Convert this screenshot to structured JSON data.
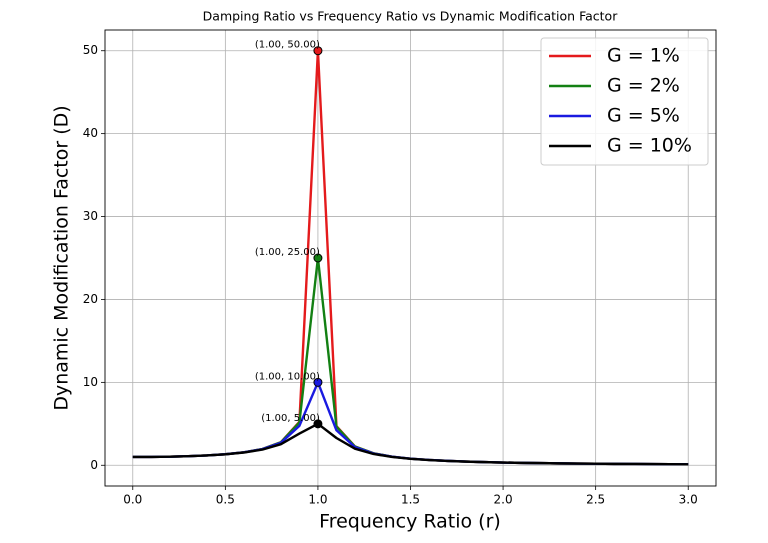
{
  "chart_data": {
    "type": "line",
    "title": "Damping Ratio vs Frequency Ratio vs Dynamic Modification Factor",
    "x_label": "Frequency Ratio (r)",
    "y_label": "Dynamic Modification Factor (D)",
    "x": [
      0,
      0.1,
      0.2,
      0.3,
      0.4,
      0.5,
      0.6,
      0.7,
      0.8,
      0.9,
      1.0,
      1.1,
      1.2,
      1.3,
      1.4,
      1.5,
      1.6,
      1.7,
      1.8,
      1.9,
      2.0,
      2.1,
      2.2,
      2.3,
      2.4,
      2.5,
      2.6,
      2.7,
      2.8,
      2.9,
      3.0
    ],
    "series": [
      {
        "name": "G = 1%",
        "color": "#e41a1c",
        "values": [
          1.0,
          1.01,
          1.04,
          1.1,
          1.19,
          1.33,
          1.56,
          1.96,
          2.78,
          5.24,
          50.0,
          4.73,
          2.27,
          1.45,
          1.04,
          0.8,
          0.64,
          0.53,
          0.45,
          0.38,
          0.33,
          0.29,
          0.26,
          0.23,
          0.21,
          0.19,
          0.17,
          0.16,
          0.15,
          0.13,
          0.12
        ]
      },
      {
        "name": "G = 2%",
        "color": "#138013",
        "values": [
          1.0,
          1.01,
          1.04,
          1.1,
          1.19,
          1.33,
          1.56,
          1.96,
          2.77,
          5.17,
          25.0,
          4.66,
          2.26,
          1.45,
          1.04,
          0.8,
          0.64,
          0.53,
          0.45,
          0.38,
          0.33,
          0.29,
          0.26,
          0.23,
          0.21,
          0.19,
          0.17,
          0.16,
          0.15,
          0.13,
          0.12
        ]
      },
      {
        "name": "G = 5%",
        "color": "#1a1ae0",
        "values": [
          1.0,
          1.01,
          1.04,
          1.1,
          1.19,
          1.33,
          1.56,
          1.94,
          2.71,
          4.76,
          10.0,
          4.22,
          2.19,
          1.42,
          1.03,
          0.79,
          0.64,
          0.53,
          0.45,
          0.38,
          0.33,
          0.29,
          0.26,
          0.23,
          0.21,
          0.19,
          0.17,
          0.16,
          0.15,
          0.13,
          0.12
        ]
      },
      {
        "name": "G = 10%",
        "color": "#000000",
        "values": [
          1.0,
          1.01,
          1.04,
          1.1,
          1.19,
          1.32,
          1.54,
          1.89,
          2.54,
          3.82,
          5.0,
          3.29,
          2.0,
          1.36,
          1.0,
          0.78,
          0.63,
          0.52,
          0.44,
          0.38,
          0.33,
          0.29,
          0.26,
          0.23,
          0.21,
          0.19,
          0.17,
          0.16,
          0.15,
          0.13,
          0.12
        ]
      }
    ],
    "annotations": [
      {
        "text": "(1.00, 50.00)",
        "x": 1.0,
        "y": 50.0,
        "color": "#e41a1c"
      },
      {
        "text": "(1.00, 25.00)",
        "x": 1.0,
        "y": 25.0,
        "color": "#138013"
      },
      {
        "text": "(1.00, 10.00)",
        "x": 1.0,
        "y": 10.0,
        "color": "#1a1ae0"
      },
      {
        "text": "(1.00, 5.00)",
        "x": 1.0,
        "y": 5.0,
        "color": "#000000"
      }
    ],
    "xlim": [
      -0.15,
      3.15
    ],
    "ylim": [
      -2.5,
      52.5
    ],
    "xticks": [
      {
        "value": 0,
        "label": "0.0"
      },
      {
        "value": 0.5,
        "label": "0.5"
      },
      {
        "value": 1.0,
        "label": "1.0"
      },
      {
        "value": 1.5,
        "label": "1.5"
      },
      {
        "value": 2.0,
        "label": "2.0"
      },
      {
        "value": 2.5,
        "label": "2.5"
      },
      {
        "value": 3.0,
        "label": "3.0"
      }
    ],
    "yticks": [
      0,
      10,
      20,
      30,
      40,
      50
    ],
    "grid": true,
    "legend": "upper right"
  }
}
